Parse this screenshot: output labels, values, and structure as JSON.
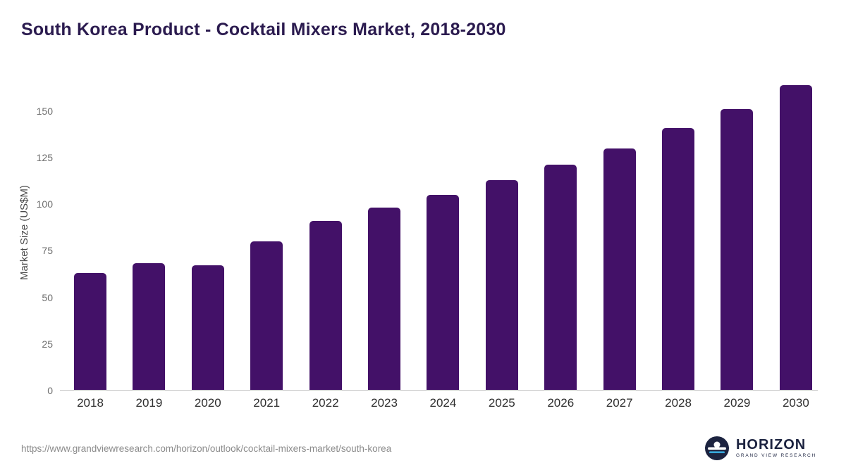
{
  "page": {
    "title": "South Korea Product - Cocktail Mixers Market, 2018-2030",
    "source_url": "https://www.grandviewresearch.com/horizon/outlook/cocktail-mixers-market/south-korea",
    "logo": {
      "name": "HORIZON",
      "subtitle": "GRAND VIEW RESEARCH"
    }
  },
  "colors": {
    "bar": "#431168",
    "title": "#2b1b4f",
    "axis_line": "#c2c2c2",
    "tick_text": "#6e6e6e",
    "logo_navy": "#1c2340",
    "logo_blue": "#38a8dc"
  },
  "chart_data": {
    "type": "bar",
    "title": "South Korea Product - Cocktail Mixers Market, 2018-2030",
    "categories": [
      "2018",
      "2019",
      "2020",
      "2021",
      "2022",
      "2023",
      "2024",
      "2025",
      "2026",
      "2027",
      "2028",
      "2029",
      "2030"
    ],
    "values": [
      63,
      68,
      67,
      80,
      91,
      98,
      105,
      113,
      121,
      130,
      141,
      151,
      164
    ],
    "xlabel": "",
    "ylabel": "Market Size (US$M)",
    "ylim": [
      0,
      170
    ],
    "yticks": [
      0,
      25,
      50,
      75,
      100,
      125,
      150
    ],
    "grid": false,
    "legend": false,
    "bar_color": "#431168"
  }
}
